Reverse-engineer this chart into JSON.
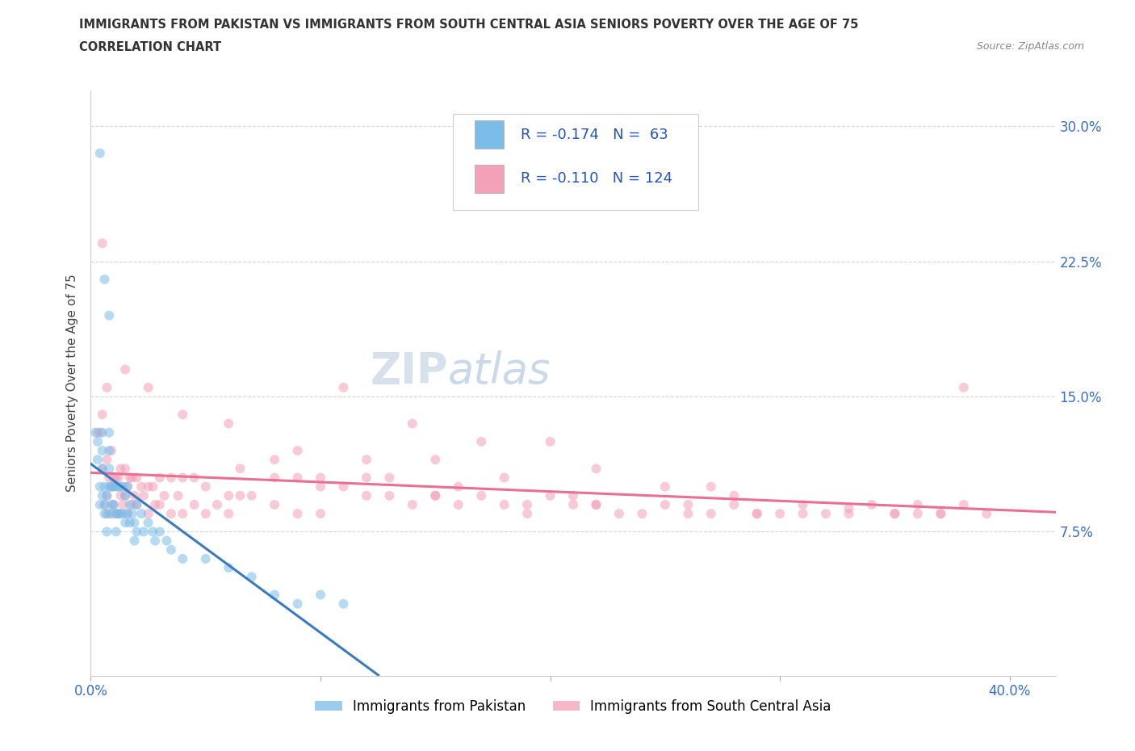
{
  "title": "IMMIGRANTS FROM PAKISTAN VS IMMIGRANTS FROM SOUTH CENTRAL ASIA SENIORS POVERTY OVER THE AGE OF 75",
  "subtitle": "CORRELATION CHART",
  "source": "Source: ZipAtlas.com",
  "ylabel": "Seniors Poverty Over the Age of 75",
  "xlabel_pakistan": "Immigrants from Pakistan",
  "xlabel_sca": "Immigrants from South Central Asia",
  "watermark_zip": "ZIP",
  "watermark_atlas": "atlas",
  "r_pakistan": -0.174,
  "n_pakistan": 63,
  "r_sca": -0.11,
  "n_sca": 124,
  "color_pakistan": "#7bbce8",
  "color_sca": "#f4a0b8",
  "trendline_pakistan": "#3a7abf",
  "trendline_sca": "#e87090",
  "trendline_dashed": "#bbbbcc",
  "background_color": "#ffffff",
  "xlim": [
    0.0,
    0.42
  ],
  "ylim": [
    -0.005,
    0.32
  ],
  "ytick_vals": [
    0.075,
    0.15,
    0.225,
    0.3
  ],
  "ytick_labels": [
    "7.5%",
    "15.0%",
    "22.5%",
    "30.0%"
  ],
  "xtick_vals": [
    0.0,
    0.1,
    0.2,
    0.3,
    0.4
  ],
  "xtick_labels": [
    "0.0%",
    "",
    "",
    "",
    "40.0%"
  ],
  "pak_x": [
    0.002,
    0.003,
    0.003,
    0.004,
    0.004,
    0.005,
    0.005,
    0.005,
    0.005,
    0.006,
    0.006,
    0.006,
    0.007,
    0.007,
    0.007,
    0.008,
    0.008,
    0.008,
    0.008,
    0.009,
    0.009,
    0.009,
    0.01,
    0.01,
    0.011,
    0.011,
    0.011,
    0.012,
    0.012,
    0.013,
    0.013,
    0.014,
    0.014,
    0.015,
    0.015,
    0.016,
    0.016,
    0.017,
    0.017,
    0.018,
    0.019,
    0.019,
    0.02,
    0.02,
    0.022,
    0.023,
    0.025,
    0.027,
    0.028,
    0.03,
    0.033,
    0.035,
    0.04,
    0.05,
    0.06,
    0.07,
    0.08,
    0.09,
    0.1,
    0.11,
    0.004,
    0.006,
    0.008
  ],
  "pak_y": [
    0.13,
    0.115,
    0.125,
    0.09,
    0.1,
    0.095,
    0.11,
    0.12,
    0.13,
    0.085,
    0.09,
    0.1,
    0.075,
    0.085,
    0.095,
    0.1,
    0.11,
    0.12,
    0.13,
    0.085,
    0.09,
    0.1,
    0.09,
    0.1,
    0.075,
    0.085,
    0.1,
    0.085,
    0.1,
    0.085,
    0.1,
    0.085,
    0.1,
    0.08,
    0.095,
    0.085,
    0.1,
    0.08,
    0.09,
    0.085,
    0.07,
    0.08,
    0.075,
    0.09,
    0.085,
    0.075,
    0.08,
    0.075,
    0.07,
    0.075,
    0.07,
    0.065,
    0.06,
    0.06,
    0.055,
    0.05,
    0.04,
    0.035,
    0.04,
    0.035,
    0.285,
    0.215,
    0.195
  ],
  "sca_x": [
    0.003,
    0.004,
    0.005,
    0.005,
    0.006,
    0.007,
    0.007,
    0.008,
    0.008,
    0.009,
    0.009,
    0.01,
    0.01,
    0.011,
    0.011,
    0.012,
    0.012,
    0.013,
    0.013,
    0.014,
    0.015,
    0.015,
    0.016,
    0.016,
    0.017,
    0.018,
    0.018,
    0.019,
    0.02,
    0.02,
    0.022,
    0.023,
    0.025,
    0.025,
    0.027,
    0.028,
    0.03,
    0.03,
    0.032,
    0.035,
    0.035,
    0.038,
    0.04,
    0.04,
    0.045,
    0.045,
    0.05,
    0.05,
    0.055,
    0.06,
    0.065,
    0.065,
    0.07,
    0.08,
    0.08,
    0.09,
    0.09,
    0.1,
    0.1,
    0.11,
    0.12,
    0.12,
    0.13,
    0.14,
    0.15,
    0.15,
    0.16,
    0.17,
    0.18,
    0.19,
    0.2,
    0.21,
    0.22,
    0.23,
    0.24,
    0.25,
    0.26,
    0.27,
    0.28,
    0.29,
    0.3,
    0.31,
    0.32,
    0.33,
    0.34,
    0.35,
    0.36,
    0.37,
    0.38,
    0.39,
    0.005,
    0.007,
    0.015,
    0.025,
    0.04,
    0.06,
    0.09,
    0.13,
    0.18,
    0.25,
    0.11,
    0.14,
    0.17,
    0.22,
    0.28,
    0.35,
    0.38,
    0.2,
    0.27,
    0.33,
    0.08,
    0.12,
    0.16,
    0.21,
    0.26,
    0.31,
    0.37,
    0.06,
    0.1,
    0.15,
    0.22,
    0.29,
    0.36,
    0.19
  ],
  "sca_y": [
    0.13,
    0.13,
    0.11,
    0.14,
    0.09,
    0.095,
    0.115,
    0.085,
    0.105,
    0.1,
    0.12,
    0.09,
    0.105,
    0.085,
    0.105,
    0.085,
    0.105,
    0.095,
    0.11,
    0.09,
    0.095,
    0.11,
    0.085,
    0.1,
    0.105,
    0.09,
    0.105,
    0.095,
    0.09,
    0.105,
    0.1,
    0.095,
    0.085,
    0.1,
    0.1,
    0.09,
    0.09,
    0.105,
    0.095,
    0.085,
    0.105,
    0.095,
    0.085,
    0.105,
    0.09,
    0.105,
    0.085,
    0.1,
    0.09,
    0.085,
    0.095,
    0.11,
    0.095,
    0.09,
    0.105,
    0.085,
    0.105,
    0.085,
    0.105,
    0.1,
    0.095,
    0.115,
    0.095,
    0.09,
    0.095,
    0.115,
    0.09,
    0.095,
    0.09,
    0.085,
    0.095,
    0.09,
    0.09,
    0.085,
    0.085,
    0.09,
    0.085,
    0.085,
    0.09,
    0.085,
    0.085,
    0.09,
    0.085,
    0.085,
    0.09,
    0.085,
    0.085,
    0.085,
    0.09,
    0.085,
    0.235,
    0.155,
    0.165,
    0.155,
    0.14,
    0.135,
    0.12,
    0.105,
    0.105,
    0.1,
    0.155,
    0.135,
    0.125,
    0.11,
    0.095,
    0.085,
    0.155,
    0.125,
    0.1,
    0.088,
    0.115,
    0.105,
    0.1,
    0.095,
    0.09,
    0.085,
    0.085,
    0.095,
    0.1,
    0.095,
    0.09,
    0.085,
    0.09,
    0.09
  ]
}
